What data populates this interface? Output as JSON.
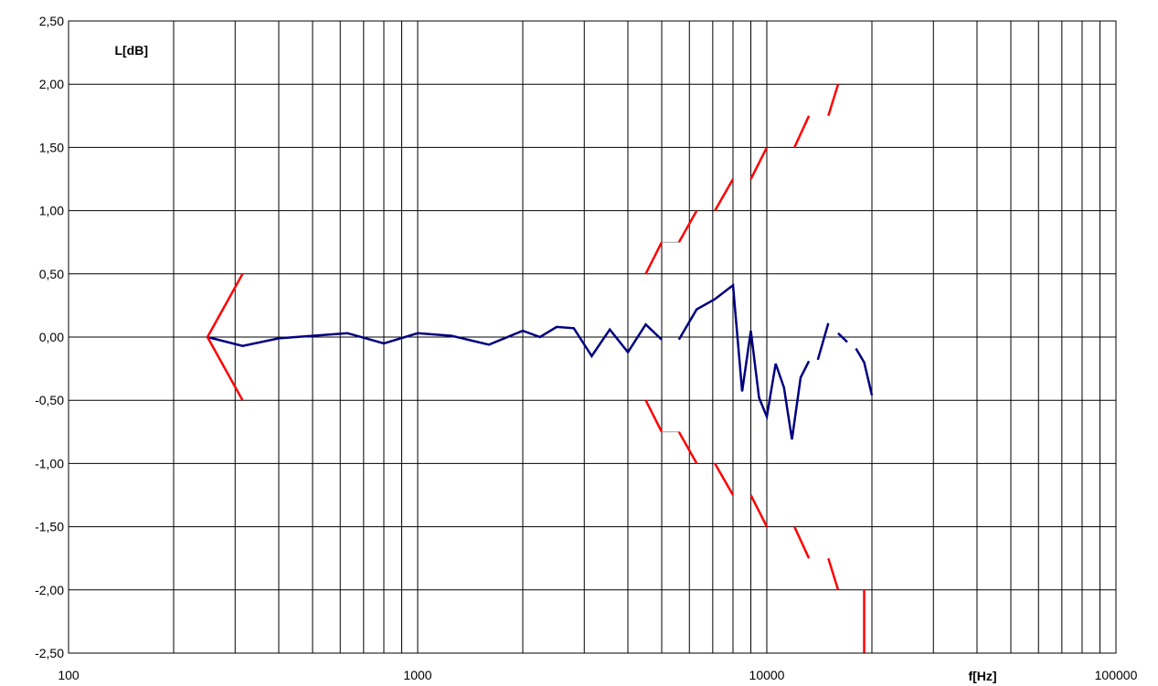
{
  "chart_data": {
    "type": "line",
    "xscale": "log",
    "xlim": [
      100,
      100000
    ],
    "ylim": [
      -2.5,
      2.5
    ],
    "grid": true,
    "ylabel": "L[dB]",
    "xlabel": "f[Hz]",
    "x_tick_labels": [
      "100",
      "1000",
      "10000",
      "100000"
    ],
    "y_tick_labels": [
      "2,50",
      "2,00",
      "1,50",
      "1,00",
      "0,50",
      "0,00",
      "-0,50",
      "-1,00",
      "-1,50",
      "-2,00",
      "-2,50"
    ],
    "y_tick_values": [
      2.5,
      2.0,
      1.5,
      1.0,
      0.5,
      0.0,
      -0.5,
      -1.0,
      -1.5,
      -2.0,
      -2.5
    ],
    "series": [
      {
        "role": "measured-response",
        "color": "#000080",
        "segments": [
          [
            [
              250,
              0.0
            ],
            [
              315,
              -0.07
            ],
            [
              400,
              -0.01
            ],
            [
              500,
              0.01
            ],
            [
              630,
              0.03
            ],
            [
              800,
              -0.05
            ],
            [
              1000,
              0.03
            ],
            [
              1250,
              0.01
            ],
            [
              1600,
              -0.06
            ],
            [
              2000,
              0.05
            ],
            [
              2240,
              0.0
            ],
            [
              2500,
              0.08
            ],
            [
              2800,
              0.07
            ],
            [
              3150,
              -0.15
            ],
            [
              3550,
              0.06
            ],
            [
              4000,
              -0.12
            ],
            [
              4500,
              0.1
            ],
            [
              5000,
              -0.02
            ]
          ],
          [
            [
              5600,
              -0.02
            ],
            [
              6300,
              0.22
            ],
            [
              7100,
              0.3
            ],
            [
              8000,
              0.41
            ],
            [
              8500,
              -0.43
            ],
            [
              9000,
              0.05
            ],
            [
              9500,
              -0.48
            ],
            [
              10000,
              -0.63
            ],
            [
              10600,
              -0.21
            ],
            [
              11200,
              -0.4
            ],
            [
              11800,
              -0.81
            ],
            [
              12500,
              -0.32
            ],
            [
              13200,
              -0.19
            ]
          ],
          [
            [
              14000,
              -0.18
            ],
            [
              15000,
              0.11
            ]
          ],
          [
            [
              16000,
              0.03
            ],
            [
              17000,
              -0.04
            ]
          ],
          [
            [
              18000,
              -0.09
            ],
            [
              19000,
              -0.2
            ],
            [
              20000,
              -0.46
            ]
          ]
        ]
      },
      {
        "role": "tolerance-upper-low-frequency",
        "color": "#ff0000",
        "segments": [
          [
            [
              250,
              0.0
            ],
            [
              315,
              0.5
            ]
          ]
        ]
      },
      {
        "role": "tolerance-lower-low-frequency",
        "color": "#ff0000",
        "segments": [
          [
            [
              250,
              0.0
            ],
            [
              315,
              -0.5
            ]
          ]
        ]
      },
      {
        "role": "tolerance-upper-high-frequency",
        "color": "#ff0000",
        "dashed": true,
        "segments": [
          [
            [
              4500,
              0.5
            ],
            [
              5000,
              0.75
            ]
          ],
          [
            [
              5600,
              0.75
            ],
            [
              6300,
              1.0
            ]
          ],
          [
            [
              7100,
              1.0
            ],
            [
              8000,
              1.25
            ]
          ],
          [
            [
              9000,
              1.25
            ],
            [
              10000,
              1.5
            ]
          ],
          [
            [
              12000,
              1.5
            ],
            [
              13200,
              1.75
            ]
          ],
          [
            [
              15000,
              1.75
            ],
            [
              16000,
              2.0
            ]
          ]
        ]
      },
      {
        "role": "tolerance-lower-high-frequency",
        "color": "#ff0000",
        "dashed": true,
        "segments": [
          [
            [
              4500,
              -0.5
            ],
            [
              5000,
              -0.75
            ]
          ],
          [
            [
              5600,
              -0.75
            ],
            [
              6300,
              -1.0
            ]
          ],
          [
            [
              7100,
              -1.0
            ],
            [
              8000,
              -1.25
            ]
          ],
          [
            [
              9000,
              -1.25
            ],
            [
              10000,
              -1.5
            ]
          ],
          [
            [
              12000,
              -1.5
            ],
            [
              13200,
              -1.75
            ]
          ],
          [
            [
              15000,
              -1.75
            ],
            [
              16000,
              -2.0
            ]
          ],
          [
            [
              19000,
              -2.0
            ],
            [
              19000,
              -2.5
            ]
          ]
        ]
      },
      {
        "role": "tolerance-step-connector",
        "color": "#a0a0a0",
        "segments": [
          [
            [
              5000,
              0.75
            ],
            [
              5600,
              0.75
            ]
          ],
          [
            [
              5000,
              -0.75
            ],
            [
              5600,
              -0.75
            ]
          ]
        ]
      }
    ]
  }
}
